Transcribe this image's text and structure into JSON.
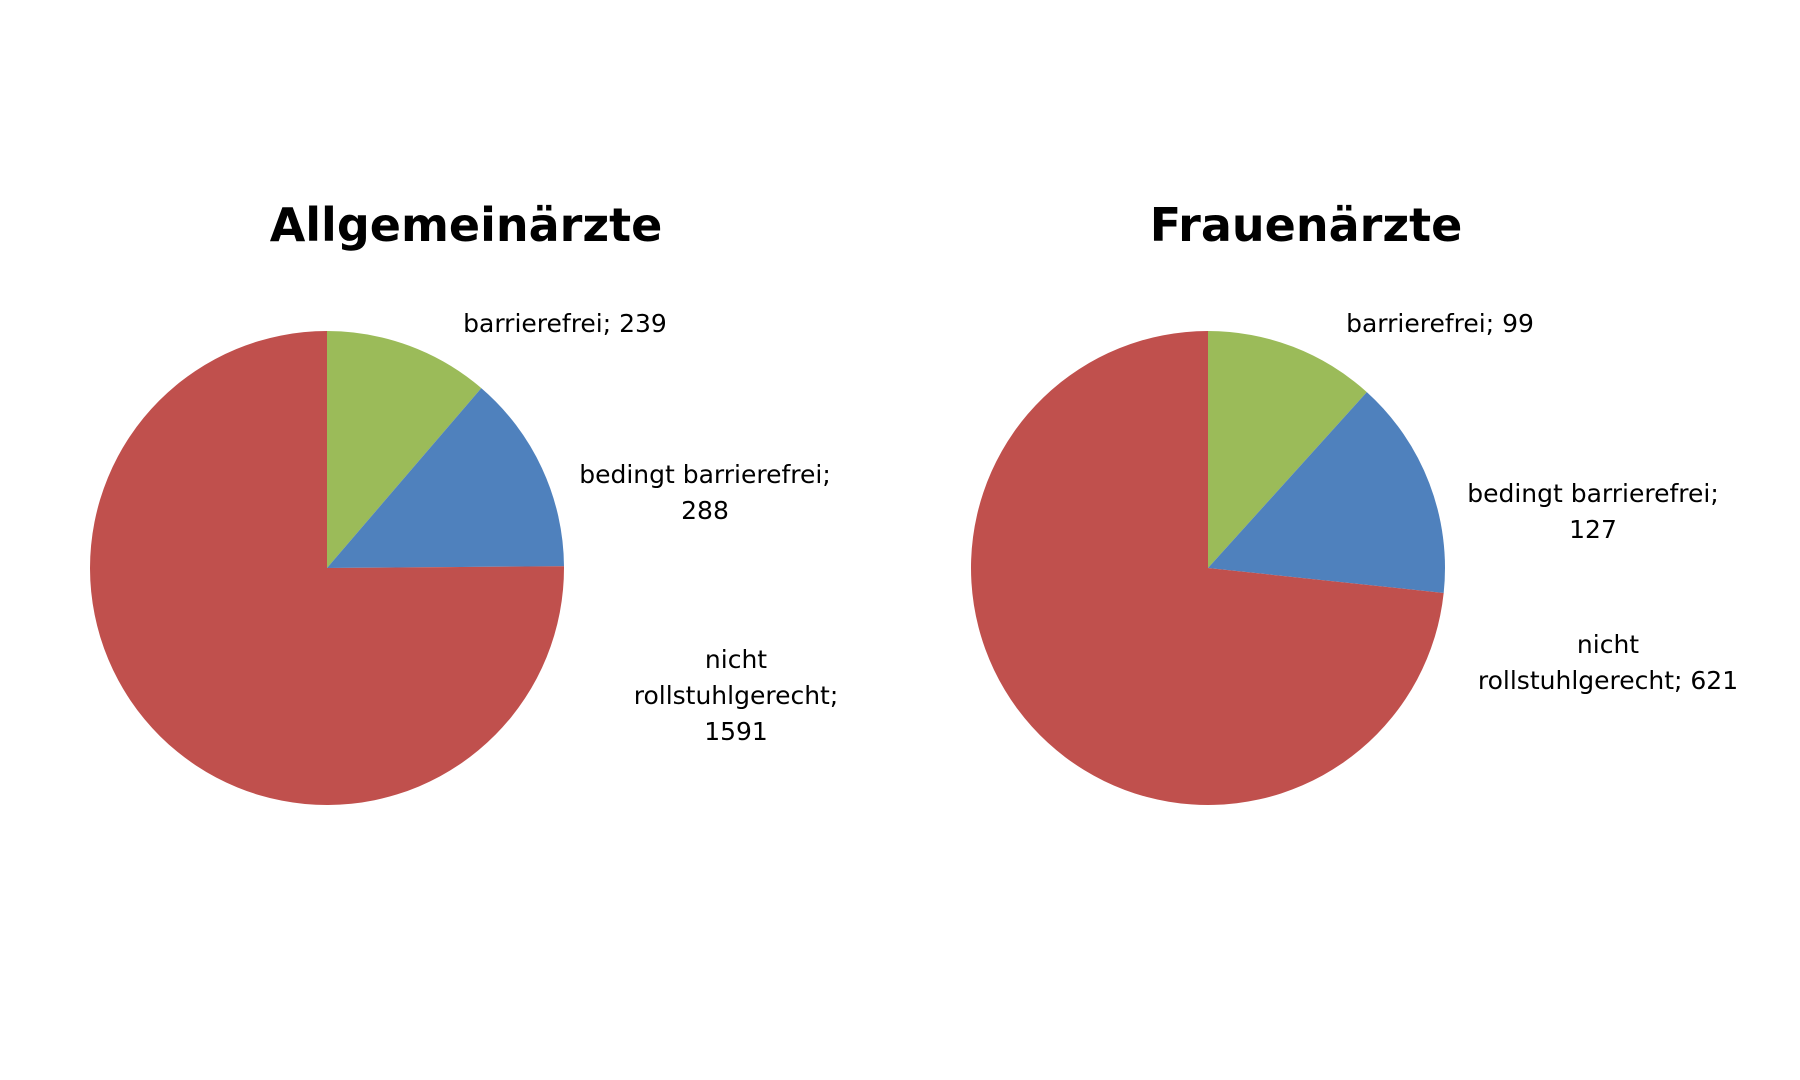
{
  "chart_data": [
    {
      "type": "pie",
      "title": "Allgemeinärzte",
      "values": [
        239,
        288,
        1591
      ],
      "value_labels": [
        "barrierefrei; 239",
        "bedingt barrierefrei; 288",
        "nicht rollstuhlgerecht; 1591"
      ],
      "colors": [
        "#9bbb59",
        "#4f81bd",
        "#c0504d"
      ]
    },
    {
      "type": "pie",
      "title": "Frauenärzte",
      "values": [
        99,
        127,
        621
      ],
      "value_labels": [
        "barrierefrei; 99",
        "bedingt barrierefrei; 127",
        "nicht rollstuhlgerecht; 621"
      ],
      "colors": [
        "#9bbb59",
        "#4f81bd",
        "#c0504d"
      ]
    }
  ]
}
